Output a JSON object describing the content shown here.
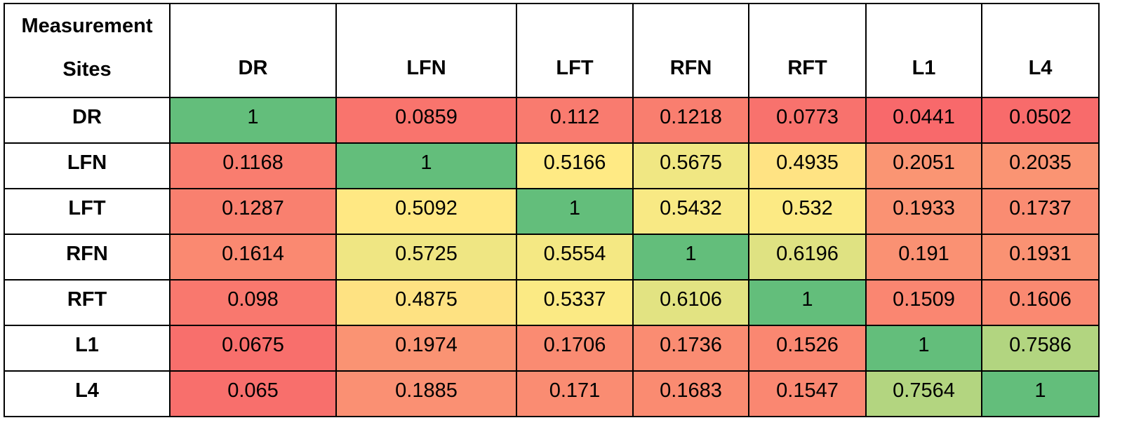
{
  "table": {
    "header": [
      "Measurement Sites",
      "DR",
      "LFN",
      "LFT",
      "RFN",
      "RFT",
      "L1",
      "L4"
    ],
    "rows": [
      {
        "label": "DR",
        "values": [
          1,
          0.0859,
          0.112,
          0.1218,
          0.0773,
          0.0441,
          0.0502
        ]
      },
      {
        "label": "LFN",
        "values": [
          0.1168,
          1,
          0.5166,
          0.5675,
          0.4935,
          0.2051,
          0.2035
        ]
      },
      {
        "label": "LFT",
        "values": [
          0.1287,
          0.5092,
          1,
          0.5432,
          0.532,
          0.1933,
          0.1737
        ]
      },
      {
        "label": "RFN",
        "values": [
          0.1614,
          0.5725,
          0.5554,
          1,
          0.6196,
          0.191,
          0.1931
        ]
      },
      {
        "label": "RFT",
        "values": [
          0.098,
          0.4875,
          0.5337,
          0.6106,
          1,
          0.1509,
          0.1606
        ]
      },
      {
        "label": "L1",
        "values": [
          0.0675,
          0.1974,
          0.1706,
          0.1736,
          0.1526,
          1,
          0.7586
        ]
      },
      {
        "label": "L4",
        "values": [
          0.065,
          0.1885,
          0.171,
          0.1683,
          0.1547,
          0.7564,
          1
        ]
      }
    ],
    "color_scale": [
      "#f8696b",
      "#ffeb84",
      "#63be7b"
    ]
  }
}
